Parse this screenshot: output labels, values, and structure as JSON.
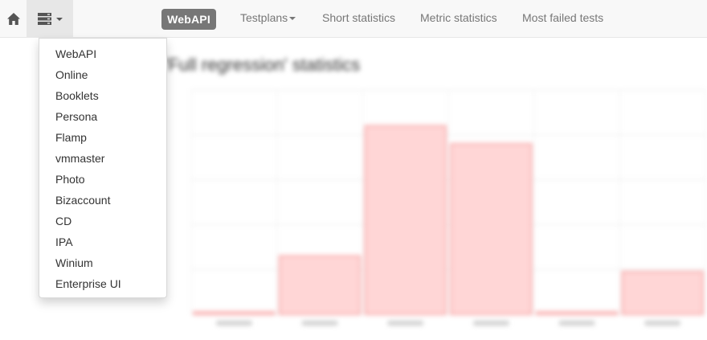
{
  "navbar": {
    "home_icon": "home-icon",
    "menu_icon": "server-list-icon",
    "brand": "WebAPI",
    "links": [
      {
        "label": "Testplans",
        "has_caret": true
      },
      {
        "label": "Short statistics"
      },
      {
        "label": "Metric statistics"
      },
      {
        "label": "Most failed tests"
      }
    ]
  },
  "dropdown": {
    "items": [
      "WebAPI",
      "Online",
      "Booklets",
      "Persona",
      "Flamp",
      "vmmaster",
      "Photo",
      "Bizaccount",
      "CD",
      "IPA",
      "Winium",
      "Enterprise UI"
    ]
  },
  "background": {
    "title": "'Full regression' statistics"
  },
  "chart_data": {
    "type": "bar",
    "categories": [
      "",
      "",
      "",
      "",
      "",
      ""
    ],
    "values": [
      0.05,
      1.3,
      4.2,
      3.8,
      0.05,
      0.95
    ],
    "ylim": [
      0,
      5
    ],
    "grid": true,
    "bar_color": "#ffd6d6",
    "bar_stroke": "#f7a8a8"
  },
  "colors": {
    "navbar_bg": "#f8f8f8",
    "brand_bg": "#777777",
    "link": "#777777"
  }
}
